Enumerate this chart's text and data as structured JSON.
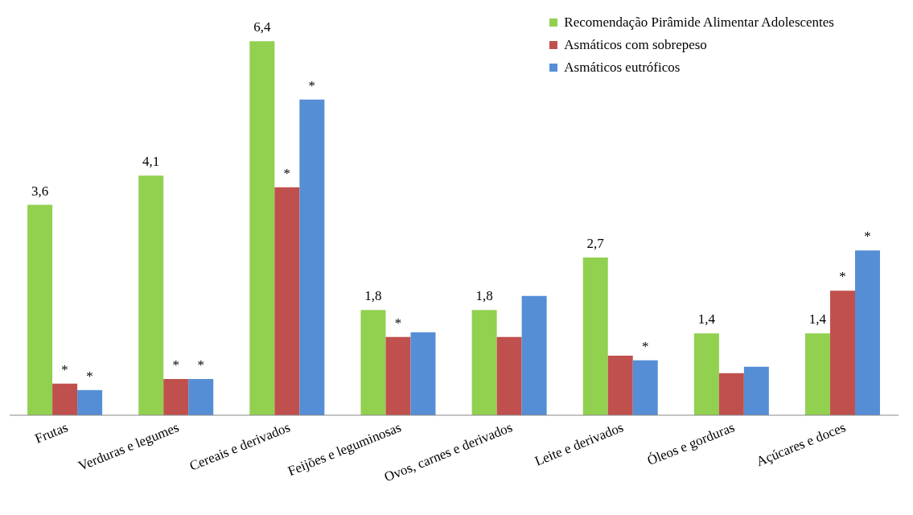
{
  "chart_data": {
    "type": "bar",
    "categories": [
      "Frutas",
      "Verduras e legumes",
      "Cereais e derivados",
      "Feijões e leguminosas",
      "Ovos, carnes e derivados",
      "Leite e derivados",
      "Óleos e gorduras",
      "Açúcares e doces"
    ],
    "series": [
      {
        "name": "Recomendação Pirâmide Alimentar Adolescentes",
        "color": "#92d050",
        "values": [
          3.6,
          4.1,
          6.4,
          1.8,
          1.8,
          2.7,
          1.4,
          1.4
        ],
        "value_labels": [
          "3,6",
          "4,1",
          "6,4",
          "1,8",
          "1,8",
          "2,7",
          "1,4",
          "1,4"
        ]
      },
      {
        "name": "Asmáticos com sobrepeso",
        "color": "#c0504d",
        "values": [
          0.54,
          0.62,
          3.9,
          1.34,
          1.34,
          1.02,
          0.72,
          2.13
        ],
        "value_labels": [
          "*",
          "*",
          "*",
          "*",
          null,
          null,
          null,
          "*"
        ]
      },
      {
        "name": "Asmáticos eutróficos",
        "color": "#558ed5",
        "values": [
          0.43,
          0.62,
          5.4,
          1.42,
          2.04,
          0.94,
          0.83,
          2.82
        ],
        "value_labels": [
          "*",
          "*",
          "*",
          null,
          null,
          "*",
          null,
          "*"
        ]
      }
    ],
    "legend": "top right",
    "grid": false
  }
}
